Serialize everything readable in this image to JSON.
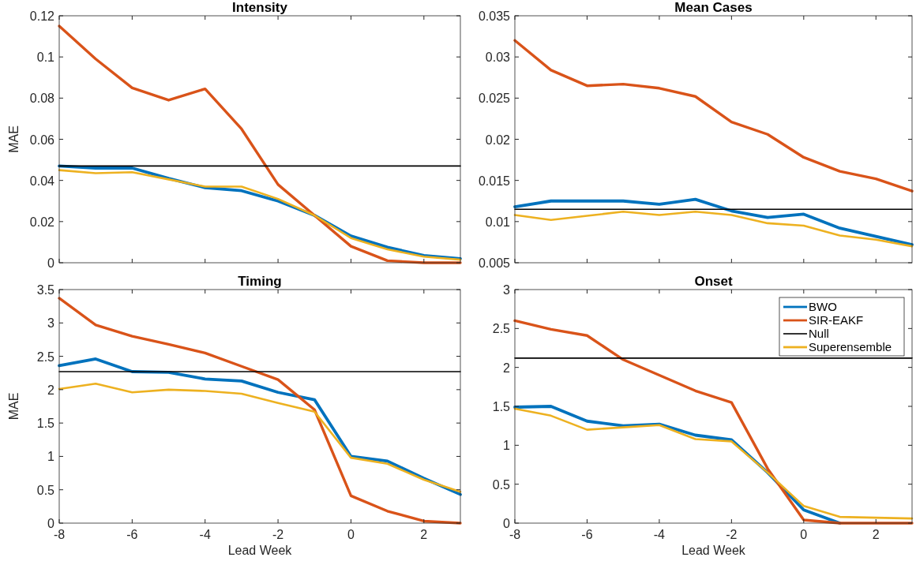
{
  "chart_data": [
    {
      "type": "line",
      "title": "Intensity",
      "ylabel": "MAE",
      "x": [
        -8,
        -7,
        -6,
        -5,
        -4,
        -3,
        -2,
        -1,
        0,
        1,
        2,
        3
      ],
      "xlim": [
        -8,
        3
      ],
      "xticks": [
        -8,
        -6,
        -4,
        -2,
        0,
        2
      ],
      "ylim": [
        0,
        0.12
      ],
      "yticks": [
        0,
        0.02,
        0.04,
        0.06,
        0.08,
        0.1,
        0.12
      ],
      "tick_labels": "y",
      "grid": false,
      "legend": false,
      "series": [
        {
          "color": "#0072bd",
          "values": [
            0.047,
            0.046,
            0.046,
            0.041,
            0.0365,
            0.035,
            0.03,
            0.023,
            0.013,
            0.0075,
            0.0035,
            0.002
          ]
        },
        {
          "color": "#d95319",
          "values": [
            0.115,
            0.099,
            0.085,
            0.079,
            0.0845,
            0.065,
            0.038,
            0.023,
            0.008,
            0.001,
            0,
            0
          ]
        },
        {
          "color": "#000000",
          "values": [
            0.047,
            0.047,
            0.047,
            0.047,
            0.047,
            0.047,
            0.047,
            0.047,
            0.047,
            0.047,
            0.047,
            0.047
          ]
        },
        {
          "color": "#edb120",
          "values": [
            0.045,
            0.0435,
            0.044,
            0.0405,
            0.037,
            0.037,
            0.031,
            0.023,
            0.012,
            0.0065,
            0.003,
            0.0015
          ]
        }
      ]
    },
    {
      "type": "line",
      "title": "Mean Cases",
      "x": [
        -8,
        -7,
        -6,
        -5,
        -4,
        -3,
        -2,
        -1,
        0,
        1,
        2,
        3
      ],
      "xlim": [
        -8,
        3
      ],
      "xticks": [
        -8,
        -6,
        -4,
        -2,
        0,
        2
      ],
      "ylim": [
        0.005,
        0.035
      ],
      "yticks": [
        0.005,
        0.01,
        0.015,
        0.02,
        0.025,
        0.03,
        0.035
      ],
      "tick_labels": "y",
      "grid": false,
      "legend": false,
      "series": [
        {
          "color": "#0072bd",
          "values": [
            0.0118,
            0.0125,
            0.0125,
            0.0125,
            0.0121,
            0.0127,
            0.0113,
            0.0105,
            0.0109,
            0.0092,
            0.0082,
            0.0072
          ]
        },
        {
          "color": "#d95319",
          "values": [
            0.032,
            0.0284,
            0.0265,
            0.0267,
            0.0262,
            0.0252,
            0.0221,
            0.0206,
            0.0178,
            0.0161,
            0.0152,
            0.0137
          ]
        },
        {
          "color": "#000000",
          "values": [
            0.0115,
            0.0115,
            0.0115,
            0.0115,
            0.0115,
            0.0115,
            0.0115,
            0.0115,
            0.0115,
            0.0115,
            0.0115,
            0.0115
          ]
        },
        {
          "color": "#edb120",
          "values": [
            0.0108,
            0.0102,
            0.0107,
            0.0112,
            0.0108,
            0.0112,
            0.0108,
            0.0098,
            0.0095,
            0.0083,
            0.0078,
            0.007
          ]
        }
      ]
    },
    {
      "type": "line",
      "title": "Timing",
      "xlabel": "Lead Week",
      "ylabel": "MAE",
      "x": [
        -8,
        -7,
        -6,
        -5,
        -4,
        -3,
        -2,
        -1,
        0,
        1,
        2,
        3
      ],
      "xlim": [
        -8,
        3
      ],
      "xticks": [
        -8,
        -6,
        -4,
        -2,
        0,
        2
      ],
      "ylim": [
        0,
        3.5
      ],
      "yticks": [
        0,
        0.5,
        1,
        1.5,
        2,
        2.5,
        3,
        3.5
      ],
      "grid": false,
      "legend": false,
      "series": [
        {
          "color": "#0072bd",
          "values": [
            2.36,
            2.46,
            2.27,
            2.26,
            2.16,
            2.13,
            1.96,
            1.85,
            1.0,
            0.93,
            0.67,
            0.43
          ]
        },
        {
          "color": "#d95319",
          "values": [
            3.37,
            2.97,
            2.8,
            2.68,
            2.55,
            2.35,
            2.15,
            1.7,
            0.41,
            0.18,
            0.03,
            0
          ]
        },
        {
          "color": "#000000",
          "values": [
            2.27,
            2.27,
            2.27,
            2.27,
            2.27,
            2.27,
            2.27,
            2.27,
            2.27,
            2.27,
            2.27,
            2.27
          ]
        },
        {
          "color": "#edb120",
          "values": [
            2.01,
            2.09,
            1.96,
            2.0,
            1.98,
            1.94,
            1.8,
            1.67,
            0.98,
            0.89,
            0.65,
            0.47
          ]
        }
      ]
    },
    {
      "type": "line",
      "title": "Onset",
      "xlabel": "Lead Week",
      "x": [
        -8,
        -7,
        -6,
        -5,
        -4,
        -3,
        -2,
        -1,
        0,
        1,
        2,
        3
      ],
      "xlim": [
        -8,
        3
      ],
      "xticks": [
        -8,
        -6,
        -4,
        -2,
        0,
        2
      ],
      "ylim": [
        0,
        3
      ],
      "yticks": [
        0,
        0.5,
        1,
        1.5,
        2,
        2.5,
        3
      ],
      "grid": false,
      "legend": "top right",
      "series": [
        {
          "name": "BWO",
          "color": "#0072bd",
          "values": [
            1.49,
            1.5,
            1.31,
            1.25,
            1.27,
            1.13,
            1.07,
            0.65,
            0.17,
            0,
            null,
            null
          ]
        },
        {
          "name": "SIR-EAKF",
          "color": "#d95319",
          "values": [
            2.6,
            2.49,
            2.41,
            2.1,
            1.9,
            1.7,
            1.55,
            0.7,
            0.04,
            0,
            0,
            0
          ]
        },
        {
          "name": "Null",
          "color": "#000000",
          "values": [
            2.12,
            2.12,
            2.12,
            2.12,
            2.12,
            2.12,
            2.12,
            2.12,
            2.12,
            2.12,
            2.12,
            2.12
          ]
        },
        {
          "name": "Superensemble",
          "color": "#edb120",
          "values": [
            1.47,
            1.38,
            1.2,
            1.23,
            1.26,
            1.08,
            1.05,
            0.65,
            0.22,
            0.08,
            0.07,
            0.06
          ]
        }
      ]
    }
  ]
}
